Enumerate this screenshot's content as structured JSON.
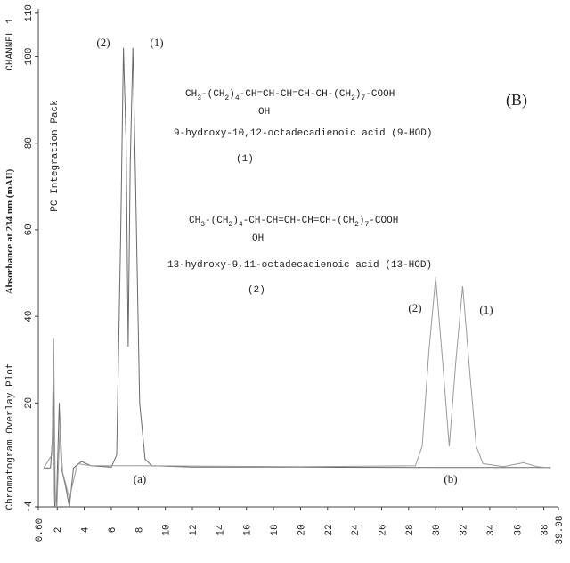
{
  "chart_data": {
    "type": "line",
    "side_labels": [
      "CHANNEL 1",
      "PC Integration Pack",
      "Chromatogram Overlay Plot"
    ],
    "ylabel": "Absorbance at 234 nm    (mAU)",
    "panel_label": "(B)",
    "compound_1": {
      "formula": [
        "CH",
        "3",
        "-(CH",
        "2",
        ")",
        "4",
        "-CH=CH-CH=CH-CH-(CH",
        "2",
        ")",
        "7",
        "-COOH"
      ],
      "group": "OH",
      "name": "9-hydroxy-10,12-octadecadienoic acid  (9-HOD)",
      "number": "(1)"
    },
    "compound_2": {
      "formula": [
        "CH",
        "3",
        "-(CH",
        "2",
        ")",
        "4",
        "-CH-CH=CH-CH=CH-(CH",
        "2",
        ")",
        "7",
        "-COOH"
      ],
      "group": "OH",
      "name": "13-hydroxy-9,11-octadecadienoic acid   (13-HOD)",
      "number": "(2)"
    },
    "peak_labels": [
      "(2)",
      "(1)",
      "(2)",
      "(1)"
    ],
    "trace_labels": [
      "(a)",
      "(b)"
    ],
    "xlim": [
      0.6,
      39.08
    ],
    "xticks": [
      {
        "value": 0.6,
        "label": "0.60"
      },
      2,
      4,
      6,
      8,
      10,
      12,
      14,
      16,
      18,
      20,
      22,
      24,
      26,
      28,
      30,
      32,
      34,
      36,
      38,
      39.08
    ],
    "ylim": [
      -4,
      111
    ],
    "yticks": [
      -4,
      20,
      40,
      60,
      80,
      100,
      110
    ],
    "series": [
      {
        "color": "#6a6a6a",
        "x": [
          1.0,
          1.5,
          1.65,
          1.72,
          1.8,
          1.9,
          2.0,
          2.15,
          2.3,
          2.6,
          2.9,
          3.2,
          3.8,
          4.5,
          6.0,
          6.4,
          6.7,
          6.9,
          7.1,
          7.25,
          7.4,
          7.6,
          7.8,
          8.1,
          8.5,
          9.0,
          12,
          20,
          30,
          38.5
        ],
        "values": [
          5,
          5,
          12,
          35,
          -2,
          -10,
          3,
          20,
          5,
          1,
          -4,
          5,
          6.5,
          5.5,
          5.2,
          8,
          60,
          102,
          80,
          33,
          75,
          102,
          70,
          20,
          7,
          5.5,
          5.2,
          5.2,
          5.1,
          5.1
        ]
      },
      {
        "color": "#9a9a9a",
        "x": [
          1.0,
          1.6,
          1.75,
          1.85,
          1.95,
          2.2,
          2.4,
          2.9,
          3.5,
          4.5,
          8,
          20,
          28.5,
          29,
          29.5,
          30,
          30.5,
          31,
          31.5,
          32,
          32.5,
          33,
          33.5,
          35,
          36.5,
          37.5,
          38.5
        ],
        "values": [
          5,
          8,
          30,
          0,
          -6,
          15,
          4,
          -2,
          6,
          5.5,
          5.5,
          5.3,
          5.5,
          10,
          32,
          49,
          30,
          10,
          30,
          47,
          28,
          10,
          6,
          5.3,
          6.2,
          5.3,
          5
        ]
      }
    ]
  }
}
